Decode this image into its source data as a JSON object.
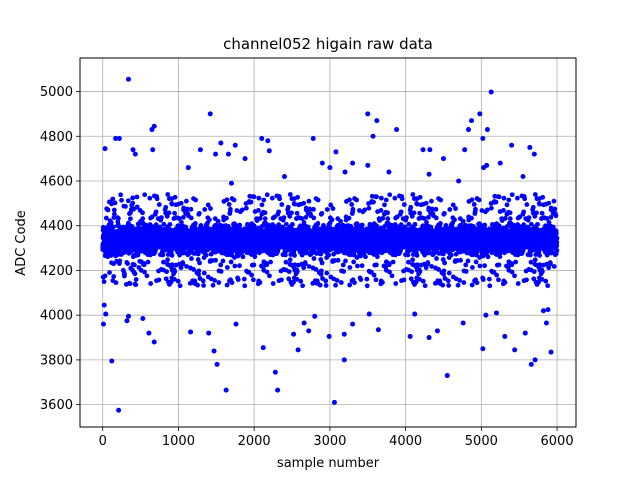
{
  "chart_data": {
    "type": "scatter",
    "title": "channel052 higain raw data",
    "xlabel": "sample number",
    "ylabel": "ADC Code",
    "xlim": [
      -300,
      6250
    ],
    "ylim": [
      3500,
      5150
    ],
    "xticks": [
      0,
      1000,
      2000,
      3000,
      4000,
      5000,
      6000
    ],
    "yticks": [
      3600,
      3800,
      4000,
      4200,
      4400,
      4600,
      4800,
      5000
    ],
    "grid": true,
    "marker_color": "#0000ff",
    "sample_count": 6000,
    "dense_band": {
      "low": 4250,
      "high": 4420,
      "center": 4340
    },
    "outliers": [
      {
        "x": 340,
        "y": 5055
      },
      {
        "x": 5130,
        "y": 4998
      },
      {
        "x": 3500,
        "y": 4900
      },
      {
        "x": 1420,
        "y": 4900
      },
      {
        "x": 4980,
        "y": 4900
      },
      {
        "x": 3620,
        "y": 4870
      },
      {
        "x": 4870,
        "y": 4870
      },
      {
        "x": 680,
        "y": 4845
      },
      {
        "x": 3880,
        "y": 4830
      },
      {
        "x": 4830,
        "y": 4830
      },
      {
        "x": 5080,
        "y": 4830
      },
      {
        "x": 650,
        "y": 4830
      },
      {
        "x": 2100,
        "y": 4790
      },
      {
        "x": 2780,
        "y": 4790
      },
      {
        "x": 170,
        "y": 4790
      },
      {
        "x": 220,
        "y": 4790
      },
      {
        "x": 2180,
        "y": 4780
      },
      {
        "x": 3570,
        "y": 4800
      },
      {
        "x": 5020,
        "y": 4790
      },
      {
        "x": 1560,
        "y": 4770
      },
      {
        "x": 1750,
        "y": 4760
      },
      {
        "x": 5400,
        "y": 4760
      },
      {
        "x": 4230,
        "y": 4740
      },
      {
        "x": 5640,
        "y": 4750
      },
      {
        "x": 30,
        "y": 4745
      },
      {
        "x": 400,
        "y": 4740
      },
      {
        "x": 660,
        "y": 4740
      },
      {
        "x": 1290,
        "y": 4740
      },
      {
        "x": 1490,
        "y": 4720
      },
      {
        "x": 2200,
        "y": 4735
      },
      {
        "x": 3080,
        "y": 4730
      },
      {
        "x": 4320,
        "y": 4740
      },
      {
        "x": 4780,
        "y": 4740
      },
      {
        "x": 5700,
        "y": 4720
      },
      {
        "x": 430,
        "y": 4720
      },
      {
        "x": 1660,
        "y": 4720
      },
      {
        "x": 1880,
        "y": 4700
      },
      {
        "x": 2900,
        "y": 4680
      },
      {
        "x": 3300,
        "y": 4680
      },
      {
        "x": 4500,
        "y": 4700
      },
      {
        "x": 5250,
        "y": 4680
      },
      {
        "x": 1130,
        "y": 4660
      },
      {
        "x": 3000,
        "y": 4660
      },
      {
        "x": 3500,
        "y": 4670
      },
      {
        "x": 5030,
        "y": 4660
      },
      {
        "x": 5070,
        "y": 4670
      },
      {
        "x": 5550,
        "y": 4620
      },
      {
        "x": 2400,
        "y": 4620
      },
      {
        "x": 3200,
        "y": 4640
      },
      {
        "x": 3780,
        "y": 4640
      },
      {
        "x": 4310,
        "y": 4630
      },
      {
        "x": 1700,
        "y": 4590
      },
      {
        "x": 4700,
        "y": 4600
      },
      {
        "x": 210,
        "y": 3575
      },
      {
        "x": 3060,
        "y": 3610
      },
      {
        "x": 4550,
        "y": 3730
      },
      {
        "x": 2280,
        "y": 3745
      },
      {
        "x": 1630,
        "y": 3665
      },
      {
        "x": 2310,
        "y": 3665
      },
      {
        "x": 120,
        "y": 3795
      },
      {
        "x": 1510,
        "y": 3780
      },
      {
        "x": 3190,
        "y": 3800
      },
      {
        "x": 5660,
        "y": 3780
      },
      {
        "x": 5710,
        "y": 3800
      },
      {
        "x": 5920,
        "y": 3835
      },
      {
        "x": 1470,
        "y": 3840
      },
      {
        "x": 2120,
        "y": 3855
      },
      {
        "x": 2580,
        "y": 3845
      },
      {
        "x": 5020,
        "y": 3850
      },
      {
        "x": 5440,
        "y": 3845
      },
      {
        "x": 680,
        "y": 3880
      },
      {
        "x": 610,
        "y": 3920
      },
      {
        "x": 1160,
        "y": 3925
      },
      {
        "x": 1400,
        "y": 3920
      },
      {
        "x": 2520,
        "y": 3915
      },
      {
        "x": 2990,
        "y": 3905
      },
      {
        "x": 3190,
        "y": 3915
      },
      {
        "x": 4060,
        "y": 3905
      },
      {
        "x": 4310,
        "y": 3900
      },
      {
        "x": 5310,
        "y": 3905
      },
      {
        "x": 5580,
        "y": 3920
      },
      {
        "x": 2720,
        "y": 3930
      },
      {
        "x": 3640,
        "y": 3935
      },
      {
        "x": 4420,
        "y": 3930
      },
      {
        "x": 10,
        "y": 3960
      },
      {
        "x": 320,
        "y": 3975
      },
      {
        "x": 530,
        "y": 3985
      },
      {
        "x": 1760,
        "y": 3960
      },
      {
        "x": 2660,
        "y": 3965
      },
      {
        "x": 3300,
        "y": 3960
      },
      {
        "x": 4760,
        "y": 3965
      },
      {
        "x": 5860,
        "y": 3965
      },
      {
        "x": 20,
        "y": 4045
      },
      {
        "x": 40,
        "y": 4005
      },
      {
        "x": 340,
        "y": 3995
      },
      {
        "x": 2800,
        "y": 3995
      },
      {
        "x": 3520,
        "y": 4005
      },
      {
        "x": 4120,
        "y": 4005
      },
      {
        "x": 5060,
        "y": 4000
      },
      {
        "x": 5200,
        "y": 4010
      },
      {
        "x": 5820,
        "y": 4020
      },
      {
        "x": 5880,
        "y": 4025
      }
    ]
  }
}
